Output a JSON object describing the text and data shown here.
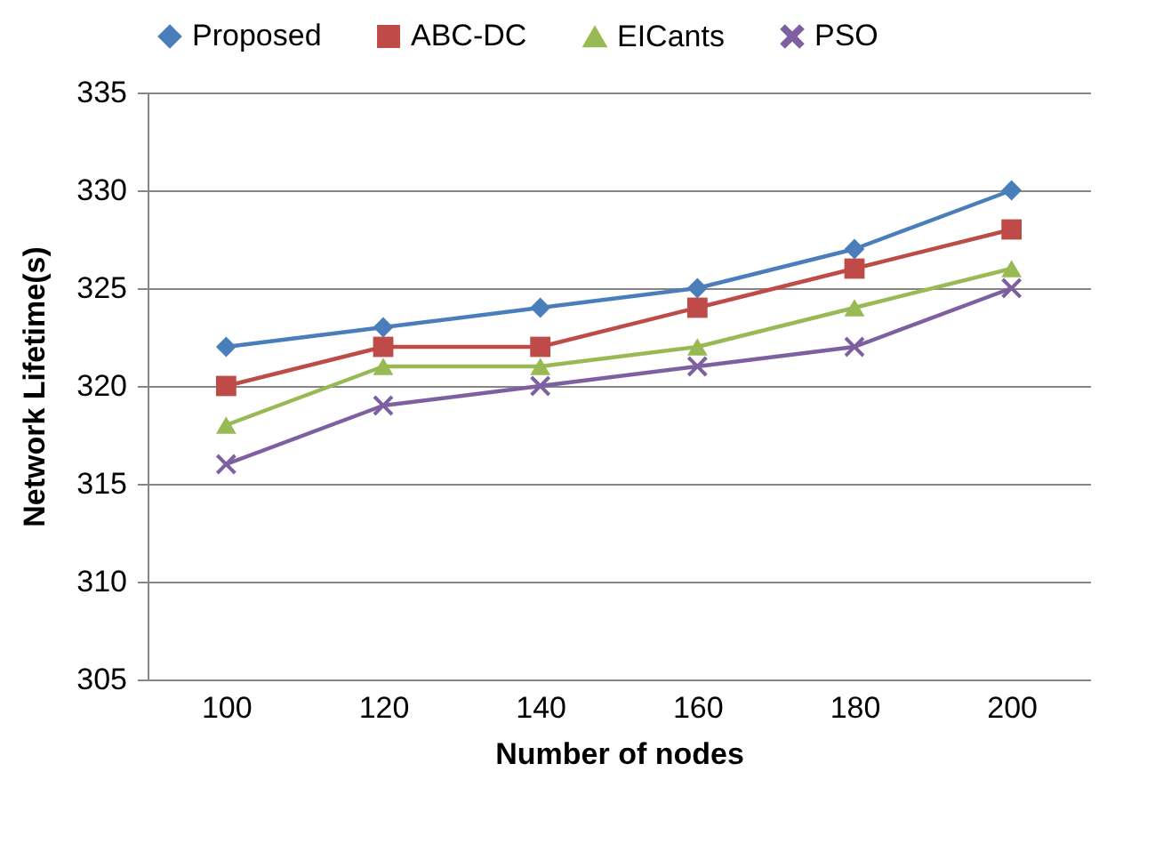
{
  "chart_data": {
    "type": "line",
    "xlabel": "Number of nodes",
    "ylabel": "Network Lifetime(s)",
    "categories": [
      "100",
      "120",
      "140",
      "160",
      "180",
      "200"
    ],
    "series": [
      {
        "name": "Proposed",
        "color": "#4a7ebb",
        "marker": "diamond",
        "values": [
          322,
          323,
          324,
          325,
          327,
          330
        ]
      },
      {
        "name": "ABC-DC",
        "color": "#be4b48",
        "marker": "square",
        "values": [
          320,
          322,
          322,
          324,
          326,
          328
        ]
      },
      {
        "name": "EICants",
        "color": "#98b954",
        "marker": "triangle",
        "values": [
          318,
          321,
          321,
          322,
          324,
          326
        ]
      },
      {
        "name": "PSO",
        "color": "#7d60a0",
        "marker": "cross",
        "values": [
          316,
          319,
          320,
          321,
          322,
          325
        ]
      }
    ],
    "ylim": [
      305,
      335
    ],
    "yticks": [
      305,
      310,
      315,
      320,
      325,
      330,
      335
    ],
    "grid": "y",
    "legend": "top"
  }
}
